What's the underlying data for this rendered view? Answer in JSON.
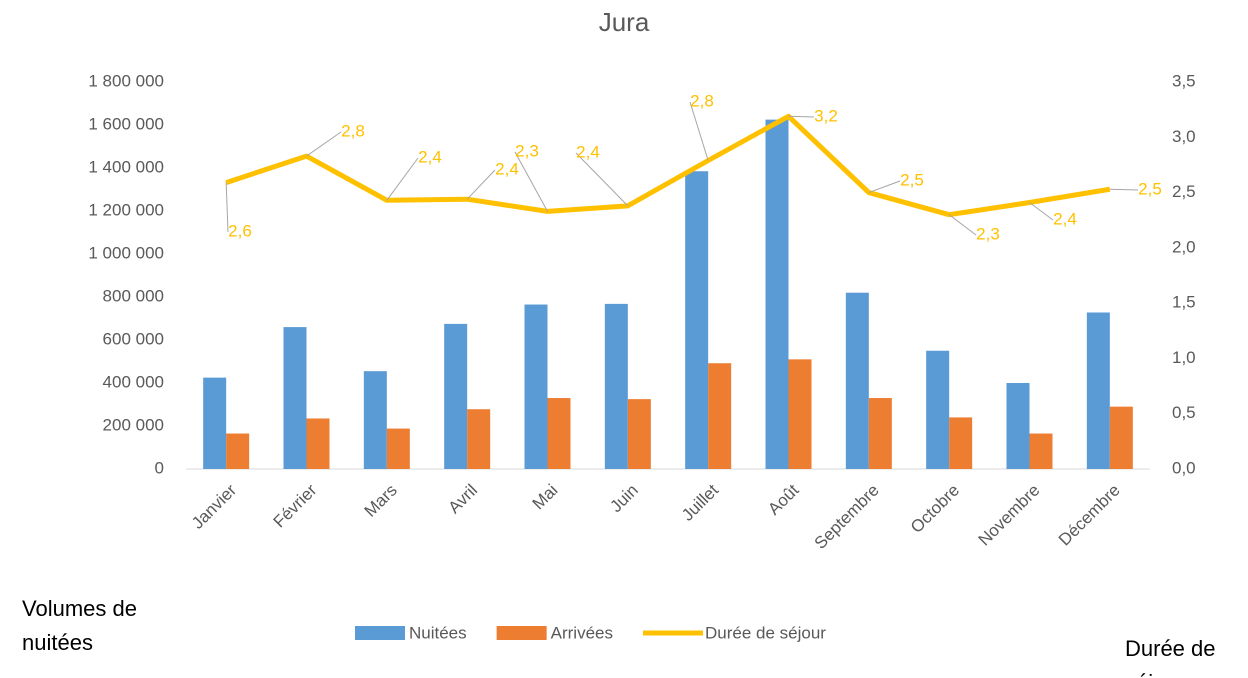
{
  "chart_data": {
    "type": "bar",
    "title": "Jura",
    "y_label": "Volumes de nuitées",
    "y2_label": "Durée de séjour",
    "categories": [
      "Janvier",
      "Février",
      "Mars",
      "Avril",
      "Mai",
      "Juin",
      "Juillet",
      "Août",
      "Septembre",
      "Octobre",
      "Novembre",
      "Décembre"
    ],
    "series": [
      {
        "name": "Nuitées",
        "type": "bar",
        "color": "#5b9bd5",
        "values": [
          425000,
          660000,
          455000,
          675000,
          765000,
          768000,
          1385000,
          1625000,
          820000,
          550000,
          400000,
          728000
        ]
      },
      {
        "name": "Arrivées",
        "type": "bar",
        "color": "#ed7d31",
        "values": [
          165000,
          235000,
          188000,
          278000,
          330000,
          325000,
          492000,
          510000,
          330000,
          240000,
          165000,
          290000
        ]
      },
      {
        "name": "Durée de séjour",
        "type": "line",
        "axis": "y2",
        "color": "#ffc000",
        "values": [
          2.59,
          2.83,
          2.43,
          2.44,
          2.33,
          2.38,
          2.79,
          3.19,
          2.5,
          2.3,
          2.41,
          2.53
        ],
        "value_labels": [
          "2,6",
          "2,8",
          "2,4",
          "2,4",
          "2,3",
          "2,4",
          "2,8",
          "3,2",
          "2,5",
          "2,3",
          "2,4",
          "2,5"
        ]
      }
    ],
    "ylim": [
      0,
      1800000
    ],
    "yticks": [
      0,
      {
        "value": 200000,
        "label": "200 000"
      },
      {
        "value": 400000,
        "label": "400 000"
      },
      {
        "value": 600000,
        "label": "600 000"
      },
      {
        "value": 800000,
        "label": "800 000"
      },
      {
        "value": 1000000,
        "label": "1 000 000"
      },
      {
        "value": 1200000,
        "label": "1 200 000"
      },
      {
        "value": 1400000,
        "label": "1 400 000"
      },
      {
        "value": 1600000,
        "label": "1 600 000"
      },
      {
        "value": 1800000,
        "label": "1 800 000"
      }
    ],
    "y2lim": [
      0,
      3.5
    ],
    "y2ticks": [
      {
        "value": 0,
        "label": "0,0"
      },
      {
        "value": 0.5,
        "label": "0,5"
      },
      {
        "value": 1,
        "label": "1,0"
      },
      {
        "value": 1.5,
        "label": "1,5"
      },
      {
        "value": 2,
        "label": "2,0"
      },
      {
        "value": 2.5,
        "label": "2,5"
      },
      {
        "value": 3,
        "label": "3,0"
      },
      {
        "value": 3.5,
        "label": "3,5"
      }
    ],
    "legend": "bottom"
  }
}
